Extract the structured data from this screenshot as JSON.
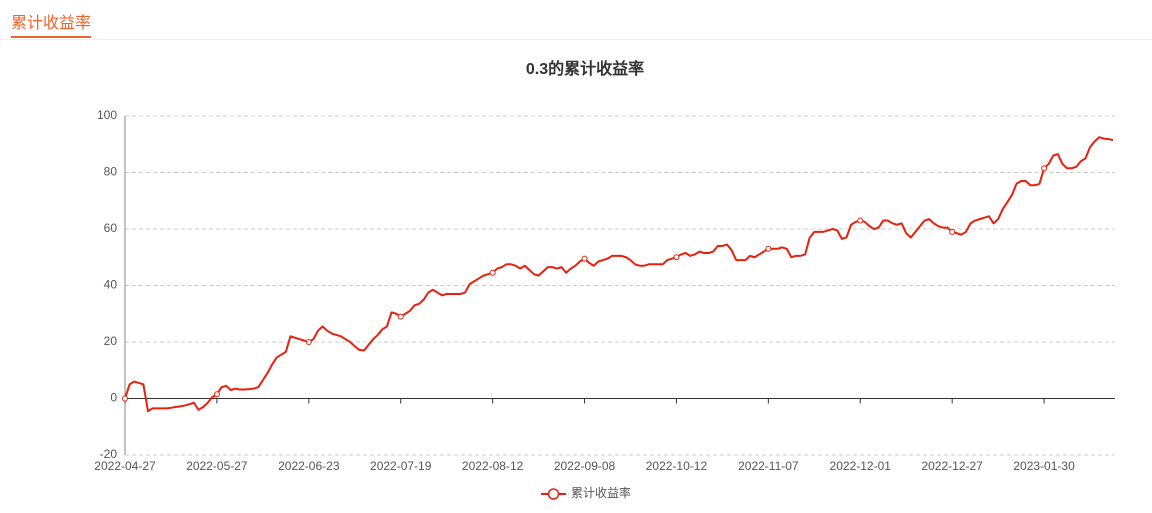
{
  "tab": "累计收益率",
  "chart_data": {
    "type": "line",
    "title": "0.3的累计收益率",
    "categories": [
      "2022-04-27",
      null,
      null,
      null,
      null,
      null,
      null,
      null,
      null,
      null,
      null,
      null,
      null,
      null,
      null,
      null,
      null,
      null,
      null,
      null,
      "2022-05-27",
      null,
      null,
      null,
      null,
      null,
      null,
      null,
      null,
      null,
      null,
      null,
      null,
      null,
      null,
      null,
      null,
      null,
      null,
      null,
      "2022-06-23",
      null,
      null,
      null,
      null,
      null,
      null,
      null,
      null,
      null,
      null,
      null,
      null,
      null,
      null,
      null,
      null,
      null,
      null,
      null,
      "2022-07-19",
      null,
      null,
      null,
      null,
      null,
      null,
      null,
      null,
      null,
      null,
      null,
      null,
      null,
      null,
      null,
      null,
      null,
      null,
      null,
      "2022-08-12",
      null,
      null,
      null,
      null,
      null,
      null,
      null,
      null,
      null,
      null,
      null,
      null,
      null,
      null,
      null,
      null,
      null,
      null,
      null,
      "2022-09-08",
      null,
      null,
      null,
      null,
      null,
      null,
      null,
      null,
      null,
      null,
      null,
      null,
      null,
      null,
      null,
      null,
      null,
      null,
      null,
      "2022-10-12",
      null,
      null,
      null,
      null,
      null,
      null,
      null,
      null,
      null,
      null,
      null,
      null,
      null,
      null,
      null,
      null,
      null,
      null,
      null,
      "2022-11-07",
      null,
      null,
      null,
      null,
      null,
      null,
      null,
      null,
      null,
      null,
      null,
      null,
      null,
      null,
      null,
      null,
      null,
      null,
      null,
      "2022-12-01",
      null,
      null,
      null,
      null,
      null,
      null,
      null,
      null,
      null,
      null,
      null,
      null,
      null,
      null,
      null,
      null,
      null,
      null,
      null,
      "2022-12-27",
      null,
      null,
      null,
      null,
      null,
      null,
      null,
      null,
      null,
      null,
      null,
      null,
      null,
      null,
      null,
      null,
      null,
      null,
      null,
      "2023-01-30",
      null,
      null,
      null,
      null,
      null,
      null,
      null,
      null,
      null,
      null,
      null,
      null,
      null,
      null,
      null
    ],
    "series": [
      {
        "name": "累计收益率",
        "color": "#e8200e",
        "values": [
          0,
          5,
          6,
          5.5,
          5,
          -4.5,
          -3.5,
          -3.5,
          -3.5,
          -3.5,
          -3.3,
          -3,
          -2.8,
          -2.5,
          -2,
          -1.5,
          -4,
          -3,
          -1.5,
          0.5,
          1.5,
          4,
          4.5,
          3,
          3.5,
          3.2,
          3.2,
          3.3,
          3.5,
          4,
          6.5,
          9,
          12,
          14.5,
          15.5,
          16.5,
          22,
          21.5,
          21,
          20.5,
          20,
          21,
          24,
          25.5,
          24,
          23,
          22.5,
          22,
          21,
          20,
          18.5,
          17.2,
          17,
          19,
          21,
          22.5,
          24.5,
          25.5,
          30.5,
          30,
          29,
          30,
          31,
          33,
          33.5,
          35,
          37.5,
          38.5,
          37.5,
          36.5,
          37,
          37,
          37,
          37,
          37.5,
          40.5,
          41.5,
          42.5,
          43.5,
          44,
          44.5,
          46,
          46.5,
          47.5,
          47.5,
          47,
          46,
          47,
          45.5,
          44,
          43.5,
          45,
          46.5,
          46.5,
          46,
          46.5,
          44.5,
          46,
          47,
          48.5,
          49.5,
          48,
          47,
          48.5,
          49,
          49.5,
          50.5,
          50.5,
          50.5,
          50,
          49,
          47.5,
          47,
          47,
          47.5,
          47.5,
          47.5,
          47.5,
          49,
          49.5,
          50,
          51,
          51.5,
          50.5,
          51,
          52,
          51.5,
          51.5,
          52,
          54,
          54,
          54.5,
          52.5,
          49,
          49,
          49,
          50.5,
          50,
          51,
          52,
          53,
          53,
          53,
          53.5,
          53,
          50,
          50.5,
          50.5,
          51,
          57,
          59,
          59,
          59,
          59.5,
          60,
          59.5,
          56.5,
          57,
          61.5,
          62.5,
          63,
          62.5,
          61,
          60,
          60.5,
          63,
          63,
          62,
          61.5,
          62,
          58.5,
          57,
          59,
          61,
          63,
          63.5,
          62,
          61,
          60.5,
          60.5,
          59,
          58.5,
          58,
          59,
          62,
          63,
          63.5,
          64,
          64.5,
          62,
          63.5,
          67,
          69.5,
          72,
          76,
          77,
          77,
          75.5,
          75.5,
          76,
          81.5,
          83,
          86,
          86.5,
          83,
          81.5,
          81.5,
          82,
          84,
          85,
          89,
          91,
          92.5,
          92,
          91.8,
          91.5
        ]
      }
    ],
    "ylim": [
      -20,
      100
    ],
    "yticks": [
      -20,
      0,
      20,
      40,
      60,
      80,
      100
    ],
    "grid": true,
    "legend": "bottom"
  }
}
